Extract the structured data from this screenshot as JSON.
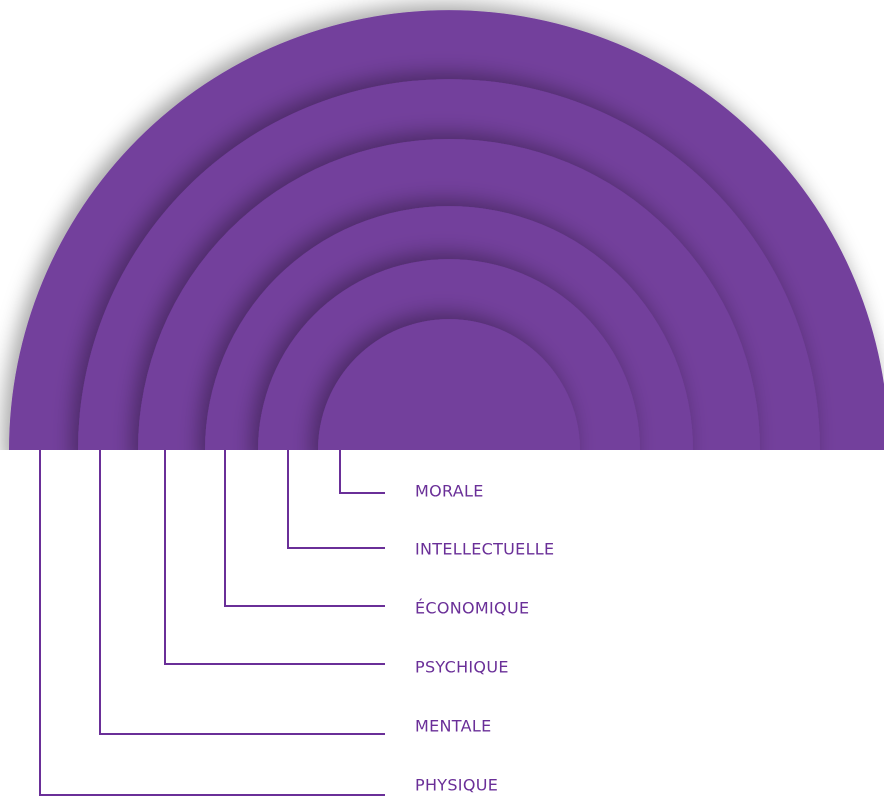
{
  "labels": [
    "MORALE",
    "INTELLECTUELLE",
    "ÉCONOMIQUE",
    "PSYCHIQUE",
    "MENTALE",
    "PHYSIQUE"
  ]
}
